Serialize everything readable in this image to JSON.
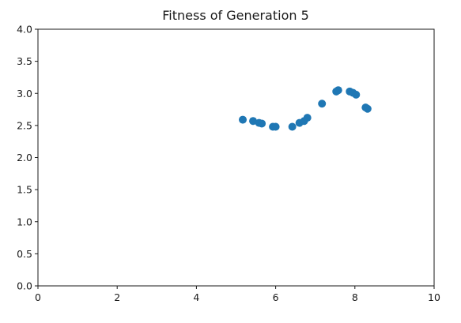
{
  "chart_data": {
    "type": "scatter",
    "title": "Fitness of Generation 5",
    "xlabel": "",
    "ylabel": "",
    "xlim": [
      0,
      10
    ],
    "ylim": [
      0.0,
      4.0
    ],
    "x_ticks": [
      "0",
      "2",
      "4",
      "6",
      "8",
      "10"
    ],
    "y_ticks": [
      "0.0",
      "0.5",
      "1.0",
      "1.5",
      "2.0",
      "2.5",
      "3.0",
      "3.5",
      "4.0"
    ],
    "grid": false,
    "legend": "none",
    "marker_color": "#1f77b4",
    "series": [
      {
        "x": [
          5.17,
          5.43,
          5.58,
          5.65,
          5.93,
          6.0,
          6.42,
          6.6,
          6.72,
          6.8,
          7.17,
          7.53,
          7.58,
          7.87,
          7.95,
          8.03,
          8.27,
          8.32
        ],
        "y": [
          2.59,
          2.57,
          2.54,
          2.53,
          2.48,
          2.48,
          2.48,
          2.54,
          2.57,
          2.62,
          2.84,
          3.03,
          3.05,
          3.03,
          3.01,
          2.98,
          2.78,
          2.76
        ]
      }
    ]
  }
}
